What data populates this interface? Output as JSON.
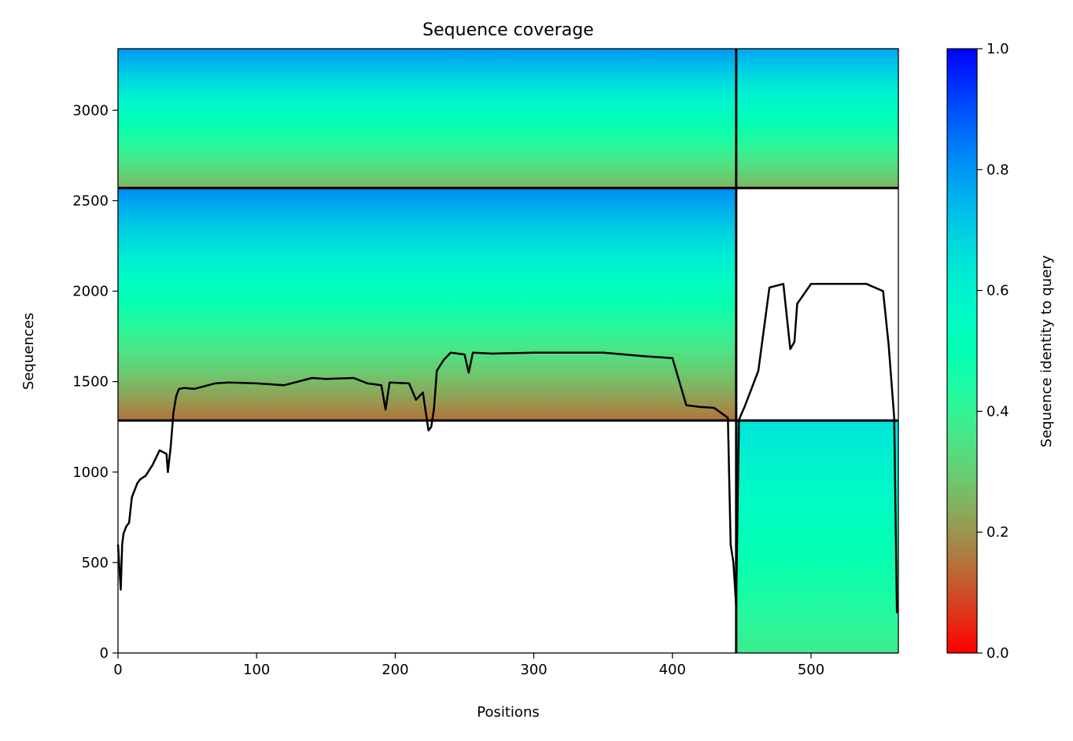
{
  "chart_data": {
    "type": "heatmap",
    "title": "Sequence coverage",
    "xlabel": "Positions",
    "ylabel": "Sequences",
    "xlim": [
      0,
      563
    ],
    "ylim": [
      0,
      3340
    ],
    "x_ticks": [
      0,
      100,
      200,
      300,
      400,
      500
    ],
    "y_ticks": [
      0,
      500,
      1000,
      1500,
      2000,
      2500,
      3000
    ],
    "colorbar": {
      "label": "Sequence identity to query",
      "range": [
        0,
        1
      ],
      "ticks": [
        "0.0",
        "0.2",
        "0.4",
        "0.6",
        "0.8",
        "1.0"
      ],
      "colormap": "rainbow_r"
    },
    "block_dividers": {
      "x": [
        446
      ],
      "y": [
        1285,
        2570
      ]
    },
    "blocks": [
      {
        "x": [
          0,
          446
        ],
        "y": [
          2570,
          3340
        ],
        "identity_bottom": 0.25,
        "identity_top": 0.8
      },
      {
        "x": [
          446,
          563
        ],
        "y": [
          2570,
          3340
        ],
        "identity_bottom": 0.25,
        "identity_top": 0.78
      },
      {
        "x": [
          0,
          446
        ],
        "y": [
          1285,
          2570
        ],
        "identity_bottom": 0.15,
        "identity_top": 0.82
      },
      {
        "x": [
          446,
          563
        ],
        "y": [
          0,
          1285
        ],
        "identity_bottom": 0.38,
        "identity_top": 0.65
      }
    ],
    "coverage_line": {
      "x": [
        0,
        2,
        3,
        4,
        6,
        8,
        10,
        14,
        16,
        20,
        25,
        30,
        35,
        36,
        38,
        40,
        42,
        44,
        48,
        55,
        70,
        80,
        100,
        120,
        140,
        150,
        170,
        180,
        190,
        193,
        196,
        210,
        215,
        220,
        224,
        226,
        228,
        230,
        235,
        240,
        250,
        253,
        256,
        270,
        300,
        350,
        380,
        400,
        410,
        420,
        430,
        440,
        442,
        444,
        446,
        448,
        452,
        456,
        462,
        470,
        480,
        485,
        488,
        490,
        500,
        520,
        540,
        552,
        556,
        560,
        562
      ],
      "y": [
        600,
        350,
        600,
        660,
        700,
        720,
        860,
        940,
        960,
        980,
        1040,
        1120,
        1100,
        1000,
        1140,
        1330,
        1420,
        1460,
        1465,
        1460,
        1490,
        1495,
        1490,
        1480,
        1520,
        1515,
        1520,
        1490,
        1480,
        1345,
        1495,
        1490,
        1400,
        1440,
        1230,
        1250,
        1350,
        1560,
        1620,
        1660,
        1650,
        1550,
        1660,
        1655,
        1660,
        1660,
        1640,
        1630,
        1370,
        1360,
        1355,
        1300,
        600,
        500,
        260,
        1290,
        1360,
        1440,
        1560,
        2020,
        2040,
        1680,
        1720,
        1930,
        2040,
        2040,
        2040,
        2000,
        1700,
        1300,
        220
      ]
    }
  }
}
